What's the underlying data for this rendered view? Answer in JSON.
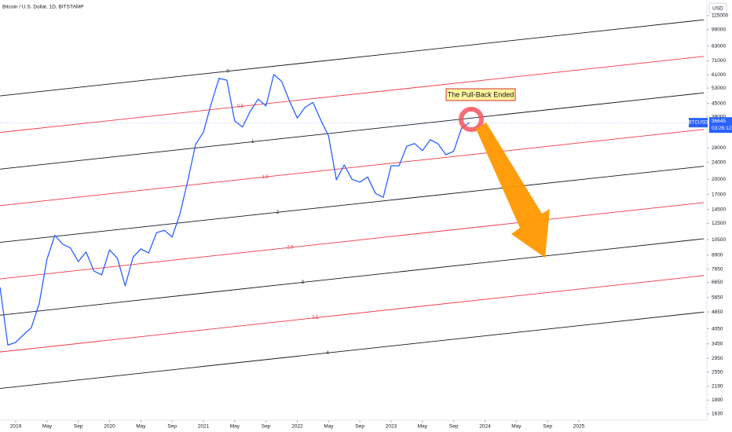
{
  "chart_data": {
    "type": "line",
    "title": "Bitcoin / U.S. Dollar, 1D, BITSTAMP",
    "currency": "USD",
    "symbol": "BTCUSD",
    "last_price": 36645,
    "countdown": "03:26:12",
    "annotation": "The Pull-Back Ended",
    "log_scale": true,
    "ylim": [
      1524,
      135900
    ],
    "yticks": [
      115000,
      99000,
      83000,
      71000,
      61000,
      53000,
      45000,
      39000,
      28000,
      24000,
      20000,
      17000,
      14500,
      12500,
      10500,
      8900,
      7650,
      6650,
      5650,
      4850,
      4050,
      3450,
      2950,
      2550,
      2190,
      1890,
      1630
    ],
    "xticks": [
      {
        "value": "2019-01",
        "label": "2019"
      },
      {
        "value": "2019-05",
        "label": "May"
      },
      {
        "value": "2019-09",
        "label": "Sep"
      },
      {
        "value": "2020-01",
        "label": "2020"
      },
      {
        "value": "2020-05",
        "label": "May"
      },
      {
        "value": "2020-09",
        "label": "Sep"
      },
      {
        "value": "2021-01",
        "label": "2021"
      },
      {
        "value": "2021-05",
        "label": "May"
      },
      {
        "value": "2021-09",
        "label": "Sep"
      },
      {
        "value": "2022-01",
        "label": "2022"
      },
      {
        "value": "2022-05",
        "label": "May"
      },
      {
        "value": "2022-09",
        "label": "Sep"
      },
      {
        "value": "2023-01",
        "label": "2023"
      },
      {
        "value": "2023-05",
        "label": "May"
      },
      {
        "value": "2023-09",
        "label": "Sep"
      },
      {
        "value": "2024-01",
        "label": "2024"
      },
      {
        "value": "2024-05",
        "label": "May"
      },
      {
        "value": "2024-09",
        "label": "Sep"
      },
      {
        "value": "2025-01",
        "label": "2025"
      }
    ],
    "series": [
      {
        "name": "BTCUSD",
        "color": "#2962ff",
        "x": [
          "2018-11",
          "2018-12",
          "2019-01",
          "2019-02",
          "2019-03",
          "2019-04",
          "2019-05",
          "2019-06",
          "2019-07",
          "2019-08",
          "2019-09",
          "2019-10",
          "2019-11",
          "2019-12",
          "2020-01",
          "2020-02",
          "2020-03",
          "2020-04",
          "2020-05",
          "2020-06",
          "2020-07",
          "2020-08",
          "2020-09",
          "2020-10",
          "2020-11",
          "2020-12",
          "2021-01",
          "2021-02",
          "2021-03",
          "2021-04",
          "2021-05",
          "2021-06",
          "2021-07",
          "2021-08",
          "2021-09",
          "2021-10",
          "2021-11",
          "2021-12",
          "2022-01",
          "2022-02",
          "2022-03",
          "2022-04",
          "2022-05",
          "2022-06",
          "2022-07",
          "2022-08",
          "2022-09",
          "2022-10",
          "2022-11",
          "2022-12",
          "2023-01",
          "2023-02",
          "2023-03",
          "2023-04",
          "2023-05",
          "2023-06",
          "2023-07",
          "2023-08",
          "2023-09",
          "2023-10",
          "2023-11"
        ],
        "values": [
          6300,
          3400,
          3500,
          3800,
          4100,
          5300,
          8500,
          11000,
          10000,
          9600,
          8300,
          9200,
          7500,
          7200,
          9400,
          8600,
          6400,
          8700,
          9500,
          9100,
          11300,
          11600,
          10800,
          13800,
          19700,
          29000,
          33100,
          45000,
          58800,
          57700,
          37300,
          35000,
          41500,
          47100,
          43800,
          61300,
          57000,
          46300,
          38500,
          43200,
          45500,
          37700,
          31800,
          19900,
          23300,
          20000,
          19400,
          20500,
          17200,
          16500,
          23100,
          23100,
          28500,
          29300,
          27200,
          30500,
          29200,
          26000,
          27000,
          34500,
          36645
        ]
      }
    ],
    "levels": [
      {
        "label": "0",
        "color": "#131722",
        "x": [
          "2018-11",
          "2026-05"
        ],
        "values": [
          48800,
          110000
        ]
      },
      {
        "label": "0.5",
        "color": "#f23645",
        "x": [
          "2018-11",
          "2026-05"
        ],
        "values": [
          33000,
          74400
        ]
      },
      {
        "label": "1",
        "color": "#131722",
        "x": [
          "2018-11",
          "2026-05"
        ],
        "values": [
          22300,
          50400
        ]
      },
      {
        "label": "1.5",
        "color": "#f23645",
        "x": [
          "2018-11",
          "2026-05"
        ],
        "values": [
          15100,
          34100
        ]
      },
      {
        "label": "2",
        "color": "#131722",
        "x": [
          "2018-11",
          "2026-05"
        ],
        "values": [
          10200,
          23000
        ]
      },
      {
        "label": "2.5",
        "color": "#f23645",
        "x": [
          "2018-11",
          "2026-05"
        ],
        "values": [
          6900,
          15600
        ]
      },
      {
        "label": "3",
        "color": "#131722",
        "x": [
          "2018-11",
          "2026-05"
        ],
        "values": [
          4680,
          10600
        ]
      },
      {
        "label": "3.5",
        "color": "#f23645",
        "x": [
          "2018-11",
          "2026-05"
        ],
        "values": [
          3160,
          7150
        ]
      },
      {
        "label": "4",
        "color": "#131722",
        "x": [
          "2018-11",
          "2026-05"
        ],
        "values": [
          2140,
          4840
        ]
      }
    ]
  }
}
